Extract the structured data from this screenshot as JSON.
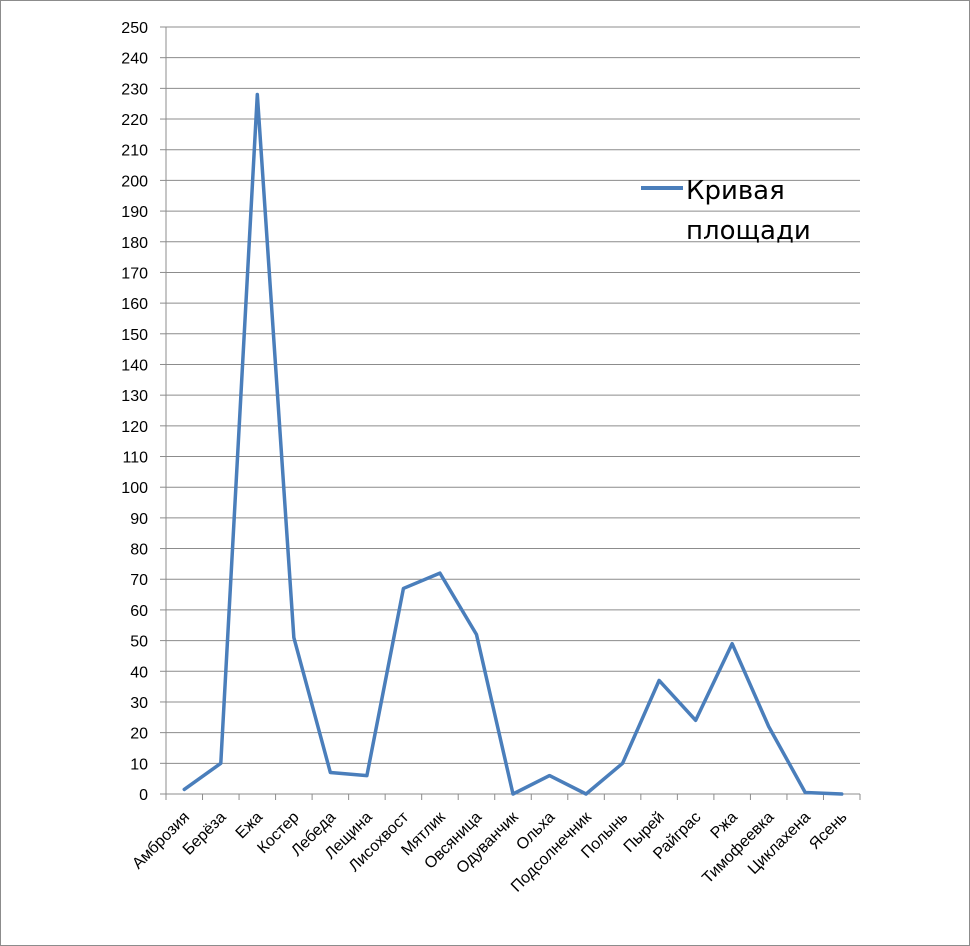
{
  "chart_data": {
    "type": "line",
    "title": "",
    "xlabel": "",
    "ylabel": "",
    "ylim": [
      0,
      250
    ],
    "ytick_step": 10,
    "grid": true,
    "legend_position": "right",
    "categories": [
      "Амброзия",
      "Берёза",
      "Ежа",
      "Костер",
      "Лебеда",
      "Лещина",
      "Лисохвост",
      "Мятлик",
      "Овсяница",
      "Одуванчик",
      "Ольха",
      "Подсолнечник",
      "Полынь",
      "Пырей",
      "Райграс",
      "Ржа",
      "Тимофеевка",
      "Циклахена",
      "Ясень"
    ],
    "series": [
      {
        "name_lines": [
          "Кривая",
          "площади"
        ],
        "color": "#4a7ebb",
        "values": [
          1.5,
          10,
          228,
          51,
          7,
          6,
          67,
          72,
          52,
          0,
          6,
          0,
          10,
          37,
          24,
          49,
          22,
          0.5,
          0
        ]
      }
    ]
  }
}
